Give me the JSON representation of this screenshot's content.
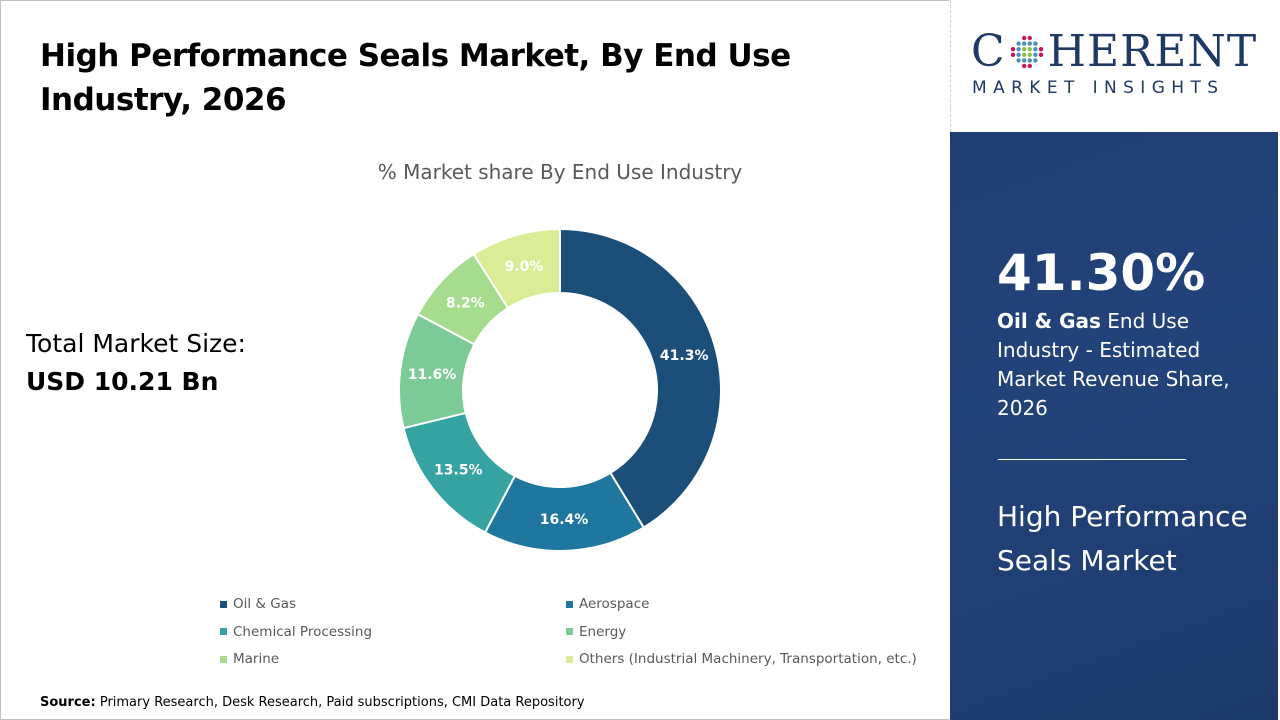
{
  "header": {
    "title": "High Performance Seals Market, By End Use Industry, 2026"
  },
  "total_market": {
    "label": "Total Market Size:",
    "value": "USD 10.21 Bn"
  },
  "source": {
    "label": "Source:",
    "text": "Primary Research, Desk Research, Paid subscriptions, CMI Data Repository"
  },
  "logo": {
    "main": "COHERENT",
    "sub": "MARKET INSIGHTS"
  },
  "highlight": {
    "value": "41.30%",
    "segment": "Oil & Gas",
    "description": "End Use Industry - Estimated Market Revenue Share, 2026",
    "market_name": "High Performance Seals Market"
  },
  "chart_data": {
    "type": "pie",
    "variant": "donut",
    "title": "% Market share By End Use Industry",
    "categories": [
      "Oil & Gas",
      "Aerospace",
      "Chemical Processing",
      "Energy",
      "Marine",
      "Others (Industrial Machinery, Transportation, etc.)"
    ],
    "values": [
      41.3,
      16.4,
      13.5,
      11.6,
      8.2,
      9.0
    ],
    "data_labels": [
      "41.3%",
      "16.4%",
      "13.5%",
      "11.6%",
      "8.2%",
      "9.0%"
    ],
    "colors": [
      "#1b4f7a",
      "#1f77a0",
      "#36a3a3",
      "#7ccb96",
      "#a6dc8e",
      "#dbec96"
    ],
    "legend_position": "bottom"
  }
}
